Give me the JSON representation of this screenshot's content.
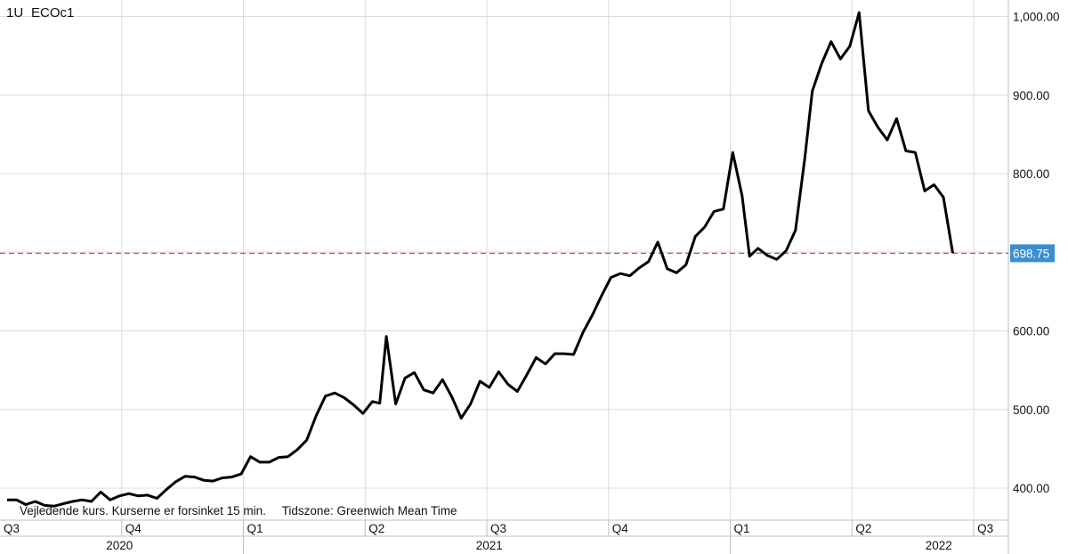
{
  "header": {
    "interval": "1U",
    "symbol": "ECOc1"
  },
  "footer_note": {
    "delay": "Vejledende kurs. Kurserne er forsinket 15 min.",
    "timezone": "Tidszone: Greenwich Mean Time"
  },
  "chart_data": {
    "type": "line",
    "ylim": [
      370,
      1010
    ],
    "yticks": [
      400,
      500,
      600,
      700,
      800,
      900,
      1000
    ],
    "ytick_labels": [
      "400.00",
      "500.00",
      "600.00",
      "700.00",
      "800.00",
      "900.00",
      "1,000.00"
    ],
    "current_price": 698.75,
    "current_price_label": "698.75",
    "quarter_labels": [
      {
        "label": "Q3",
        "t": 0.0
      },
      {
        "label": "Q4",
        "t": 13.0
      },
      {
        "label": "Q1",
        "t": 26.0
      },
      {
        "label": "Q2",
        "t": 39.0
      },
      {
        "label": "Q3",
        "t": 52.0
      },
      {
        "label": "Q4",
        "t": 65.0
      },
      {
        "label": "Q1",
        "t": 78.0
      },
      {
        "label": "Q2",
        "t": 91.0
      },
      {
        "label": "Q3",
        "t": 104.0
      }
    ],
    "year_labels": [
      {
        "label": "2020",
        "t": 12.0
      },
      {
        "label": "2021",
        "t": 51.5
      },
      {
        "label": "2022",
        "t": 99.5
      }
    ],
    "grid": true,
    "series": [
      {
        "color": "#000000",
        "values": [
          [
            0,
            385
          ],
          [
            1,
            385
          ],
          [
            2,
            379
          ],
          [
            3,
            383
          ],
          [
            4,
            378
          ],
          [
            5,
            377
          ],
          [
            6,
            380
          ],
          [
            7,
            383
          ],
          [
            8,
            385
          ],
          [
            9,
            383
          ],
          [
            10,
            395
          ],
          [
            11,
            385
          ],
          [
            12,
            390
          ],
          [
            13,
            393
          ],
          [
            14,
            390
          ],
          [
            15,
            391
          ],
          [
            16,
            387
          ],
          [
            17,
            398
          ],
          [
            18,
            408
          ],
          [
            19,
            415
          ],
          [
            20,
            414
          ],
          [
            21,
            410
          ],
          [
            22,
            409
          ],
          [
            23,
            413
          ],
          [
            24,
            414
          ],
          [
            25,
            418
          ],
          [
            26,
            440
          ],
          [
            27,
            433
          ],
          [
            28,
            433
          ],
          [
            29,
            439
          ],
          [
            30,
            440
          ],
          [
            31,
            449
          ],
          [
            32,
            461
          ],
          [
            33,
            492
          ],
          [
            34,
            517
          ],
          [
            35,
            521
          ],
          [
            36,
            515
          ],
          [
            37,
            506
          ],
          [
            38,
            495
          ],
          [
            39,
            510
          ],
          [
            39.8,
            508
          ],
          [
            40.5,
            593
          ],
          [
            41.5,
            507
          ],
          [
            42.5,
            540
          ],
          [
            43.5,
            547
          ],
          [
            44.5,
            525
          ],
          [
            45.5,
            521
          ],
          [
            46.5,
            538
          ],
          [
            47.5,
            516
          ],
          [
            48.5,
            489
          ],
          [
            49.5,
            507
          ],
          [
            50.5,
            536
          ],
          [
            51.5,
            528
          ],
          [
            52.5,
            548
          ],
          [
            53.5,
            532
          ],
          [
            54.5,
            523
          ],
          [
            55.5,
            544
          ],
          [
            56.5,
            566
          ],
          [
            57.5,
            558
          ],
          [
            58.5,
            571
          ],
          [
            59.5,
            571
          ],
          [
            60.5,
            570
          ],
          [
            61.5,
            598
          ],
          [
            62.5,
            620
          ],
          [
            63.5,
            645
          ],
          [
            64.5,
            668
          ],
          [
            65.5,
            673
          ],
          [
            66.5,
            670
          ],
          [
            67.5,
            680
          ],
          [
            68.5,
            688
          ],
          [
            69.5,
            713
          ],
          [
            70.5,
            679
          ],
          [
            71.5,
            674
          ],
          [
            72.5,
            684
          ],
          [
            73.5,
            720
          ],
          [
            74.5,
            732
          ],
          [
            75.5,
            752
          ],
          [
            76.5,
            755
          ],
          [
            77.5,
            827
          ],
          [
            78.5,
            772
          ],
          [
            79.3,
            695
          ],
          [
            80.2,
            705
          ],
          [
            81.2,
            696
          ],
          [
            82.2,
            691
          ],
          [
            83.2,
            702
          ],
          [
            84.2,
            728
          ],
          [
            85.2,
            820
          ],
          [
            86,
            905
          ],
          [
            87,
            940
          ],
          [
            88,
            968
          ],
          [
            89,
            946
          ],
          [
            90,
            962
          ],
          [
            91,
            1005
          ],
          [
            92,
            880
          ],
          [
            93,
            859
          ],
          [
            94,
            843
          ],
          [
            95,
            870
          ],
          [
            96,
            829
          ],
          [
            97,
            827
          ],
          [
            98,
            778
          ],
          [
            99,
            786
          ],
          [
            100,
            770
          ],
          [
            101,
            699
          ]
        ]
      }
    ]
  }
}
